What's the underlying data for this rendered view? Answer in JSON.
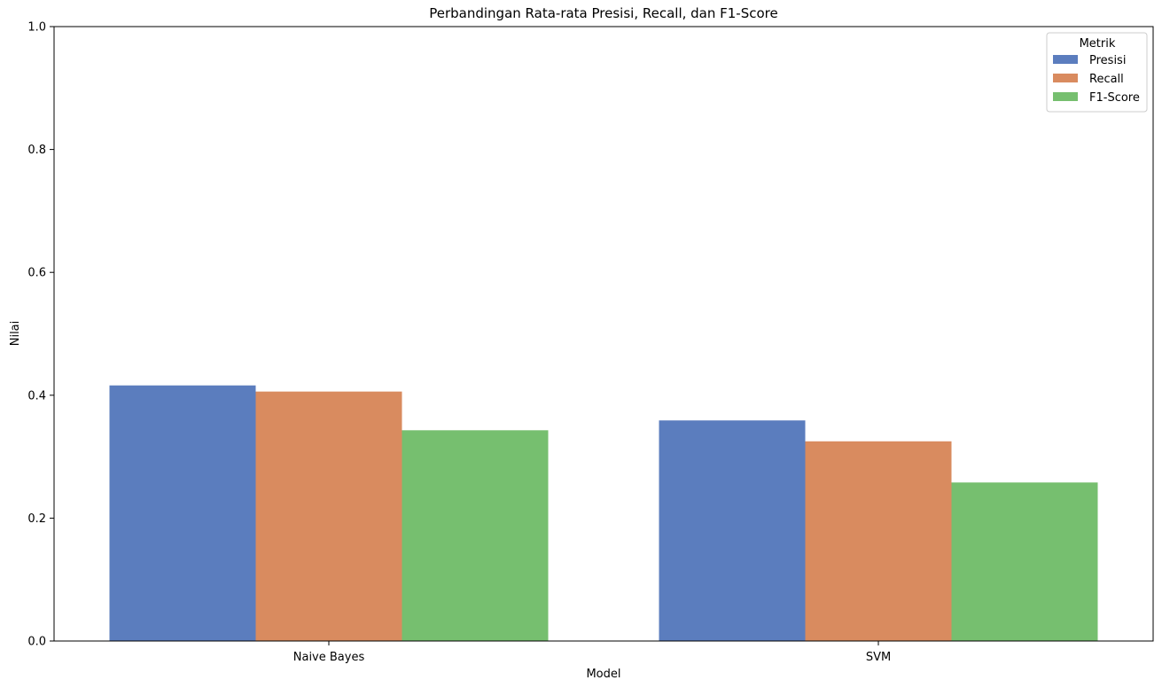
{
  "chart_data": {
    "type": "bar",
    "title": "Perbandingan Rata-rata Presisi, Recall, dan F1-Score",
    "xlabel": "Model",
    "ylabel": "Nilai",
    "ylim": [
      0,
      1.0
    ],
    "yticks": [
      "0.0",
      "0.2",
      "0.4",
      "0.6",
      "0.8",
      "1.0"
    ],
    "categories": [
      "Naive Bayes",
      "SVM"
    ],
    "legend": {
      "title": "Metrik",
      "position": "top-right"
    },
    "grid": false,
    "series": [
      {
        "name": "Presisi",
        "color": "#5b7dbe",
        "values": [
          0.416,
          0.359
        ]
      },
      {
        "name": "Recall",
        "color": "#d98b5f",
        "values": [
          0.406,
          0.325
        ]
      },
      {
        "name": "F1-Score",
        "color": "#76bf6f",
        "values": [
          0.343,
          0.258
        ]
      }
    ]
  }
}
